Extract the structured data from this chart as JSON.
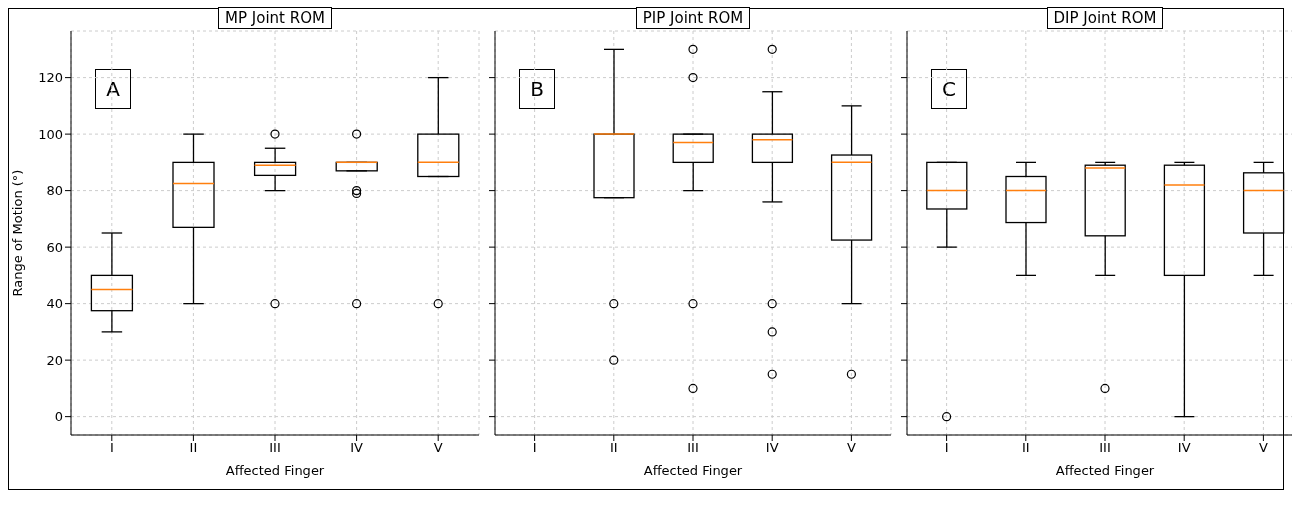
{
  "chart_data": [
    {
      "type": "box",
      "title": "MP Joint ROM",
      "xlabel": "Affected Finger",
      "ylabel": "Range of Motion (°)",
      "categories": [
        "I",
        "II",
        "III",
        "IV",
        "V"
      ],
      "ylim": [
        -6.5,
        136.5
      ],
      "yticks": [
        0,
        20,
        40,
        60,
        80,
        100,
        120
      ],
      "grid": true,
      "annotations": [
        "A"
      ],
      "boxes": [
        {
          "low": 30,
          "q1": 37.5,
          "median": 45,
          "q3": 50,
          "high": 65
        },
        {
          "low": 40,
          "q1": 67,
          "median": 82.5,
          "q3": 90,
          "high": 100
        },
        {
          "low": 80,
          "q1": 85.4,
          "median": 89,
          "q3": 90,
          "high": 95,
          "outliers": [
            100,
            40
          ]
        },
        {
          "low": 87,
          "q1": 87,
          "median": 90,
          "q3": 90,
          "high": 90,
          "outliers": [
            100,
            80,
            79,
            40
          ]
        },
        {
          "low": 85,
          "q1": 85,
          "median": 90,
          "q3": 100,
          "high": 120,
          "outliers": [
            40
          ]
        }
      ]
    },
    {
      "type": "box",
      "title": "PIP Joint ROM",
      "xlabel": "Affected Finger",
      "categories": [
        "I",
        "II",
        "III",
        "IV",
        "V"
      ],
      "ylim": [
        -6.5,
        136.5
      ],
      "yticks": [
        0,
        20,
        40,
        60,
        80,
        100,
        120
      ],
      "grid": true,
      "tick_labels": "x",
      "annotations": [
        "B"
      ],
      "boxes": [
        null,
        {
          "low": 77.5,
          "q1": 77.5,
          "median": 100,
          "q3": 100,
          "high": 130,
          "outliers": [
            40,
            20
          ]
        },
        {
          "low": 80,
          "q1": 90,
          "median": 97,
          "q3": 100,
          "high": 100,
          "outliers": [
            130,
            120,
            40,
            10
          ]
        },
        {
          "low": 76,
          "q1": 90,
          "median": 98,
          "q3": 100,
          "high": 115,
          "outliers": [
            130,
            40,
            30,
            15
          ]
        },
        {
          "low": 40,
          "q1": 62.5,
          "median": 90,
          "q3": 92.6,
          "high": 110,
          "outliers": [
            15
          ]
        }
      ]
    },
    {
      "type": "box",
      "title": "DIP Joint ROM",
      "xlabel": "Affected Finger",
      "categories": [
        "I",
        "II",
        "III",
        "IV",
        "V"
      ],
      "ylim": [
        -6.5,
        136.5
      ],
      "yticks": [
        0,
        20,
        40,
        60,
        80,
        100,
        120
      ],
      "grid": true,
      "tick_labels": "x",
      "annotations": [
        "C"
      ],
      "boxes": [
        {
          "low": 60,
          "q1": 73.5,
          "median": 80,
          "q3": 90,
          "high": 90,
          "outliers": [
            0
          ]
        },
        {
          "low": 50,
          "q1": 68.7,
          "median": 80,
          "q3": 85,
          "high": 90
        },
        {
          "low": 50,
          "q1": 64,
          "median": 88,
          "q3": 89,
          "high": 90,
          "outliers": [
            10
          ]
        },
        {
          "low": 0,
          "q1": 50,
          "median": 82,
          "q3": 89,
          "high": 90
        },
        {
          "low": 50,
          "q1": 65,
          "median": 80,
          "q3": 86.3,
          "high": 90
        }
      ]
    }
  ]
}
